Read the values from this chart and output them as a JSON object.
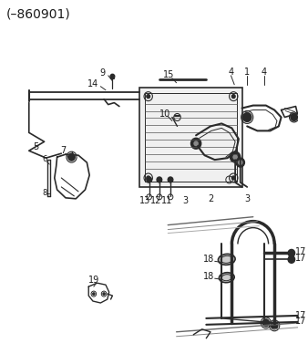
{
  "title": "(–860901)",
  "bg_color": "#ffffff",
  "line_color": "#2a2a2a",
  "text_color": "#1a1a1a",
  "title_fontsize": 10,
  "label_fontsize": 7,
  "fig_width": 3.38,
  "fig_height": 3.88,
  "dpi": 100
}
